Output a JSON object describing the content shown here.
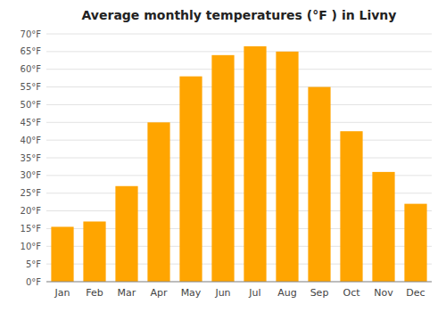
{
  "chart_data": {
    "type": "bar",
    "title": "Average monthly temperatures (°F ) in Livny",
    "categories": [
      "Jan",
      "Feb",
      "Mar",
      "Apr",
      "May",
      "Jun",
      "Jul",
      "Aug",
      "Sep",
      "Oct",
      "Nov",
      "Dec"
    ],
    "values": [
      15.5,
      17.0,
      27.0,
      45.0,
      58.0,
      64.0,
      66.5,
      65.0,
      55.0,
      42.5,
      31.0,
      22.0
    ],
    "color": "#FFA500",
    "ylim": [
      0,
      70
    ],
    "yticks": [
      {
        "value": 0,
        "label": "0°F"
      },
      {
        "value": 5,
        "label": "5°F"
      },
      {
        "value": 10,
        "label": "10°F"
      },
      {
        "value": 15,
        "label": "15°F"
      },
      {
        "value": 20,
        "label": "20°F"
      },
      {
        "value": 25,
        "label": "25°F"
      },
      {
        "value": 30,
        "label": "30°F"
      },
      {
        "value": 35,
        "label": "35°F"
      },
      {
        "value": 40,
        "label": "40°F"
      },
      {
        "value": 45,
        "label": "45°F"
      },
      {
        "value": 50,
        "label": "50°F"
      },
      {
        "value": 55,
        "label": "55°F"
      },
      {
        "value": 60,
        "label": "60°F"
      },
      {
        "value": 65,
        "label": "65°F"
      },
      {
        "value": 70,
        "label": "70°F"
      }
    ],
    "grid": true
  }
}
